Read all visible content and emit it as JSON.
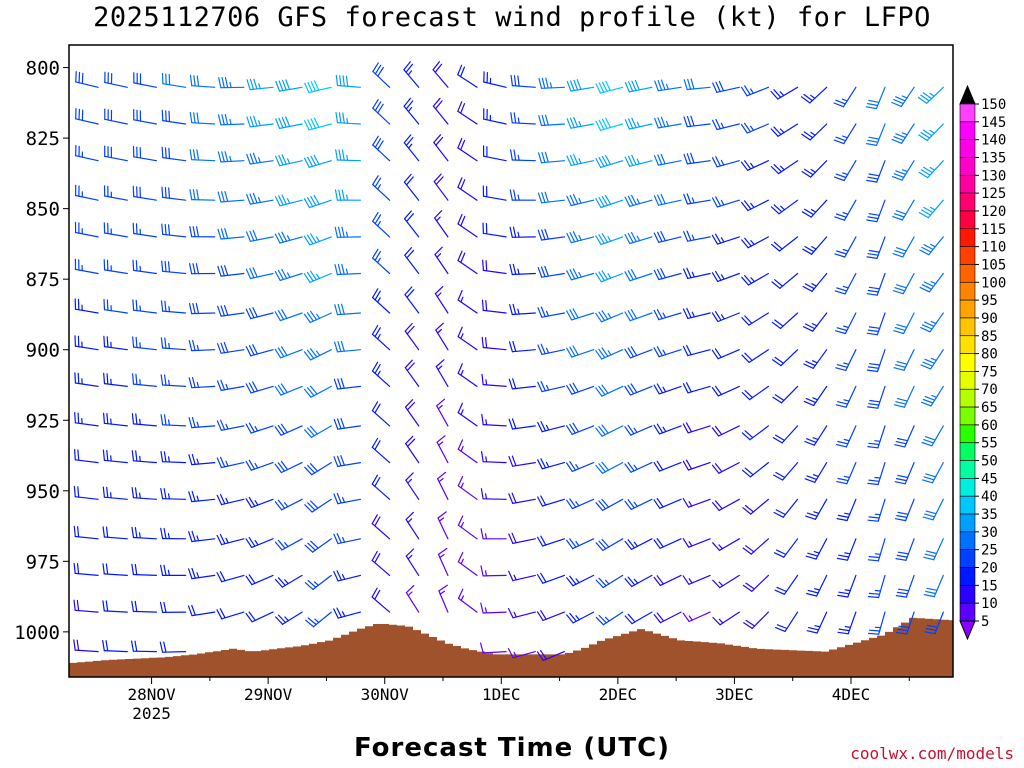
{
  "chart_data": {
    "type": "wind_barb_time_height",
    "title": "2025112706 GFS forecast wind profile (kt) for LFPO",
    "xlabel": "Forecast Time (UTC)",
    "ylabel": "",
    "credit": "coolwx.com/models",
    "model_run": "2025112706",
    "model": "GFS",
    "station": "LFPO",
    "units": "kt",
    "x_range_hours_from_28NOV00Z": [
      -17,
      165
    ],
    "x_step_hours": 6,
    "x_ticks": [
      {
        "label": "28NOV",
        "sublabel": "2025",
        "hour": 0
      },
      {
        "label": "29NOV",
        "sublabel": "",
        "hour": 24
      },
      {
        "label": "30NOV",
        "sublabel": "",
        "hour": 48
      },
      {
        "label": "1DEC",
        "sublabel": "",
        "hour": 72
      },
      {
        "label": "2DEC",
        "sublabel": "",
        "hour": 96
      },
      {
        "label": "3DEC",
        "sublabel": "",
        "hour": 120
      },
      {
        "label": "4DEC",
        "sublabel": "",
        "hour": 144
      }
    ],
    "y_range_hPa": [
      792,
      1016
    ],
    "y_ticks": [
      800,
      825,
      850,
      875,
      900,
      925,
      950,
      975,
      1000
    ],
    "pressure_levels_hPa": [
      807,
      820,
      833,
      847,
      860,
      873,
      887,
      900,
      913,
      927,
      940,
      953,
      967,
      980,
      993,
      1007
    ],
    "colorbar_values": [
      5,
      10,
      15,
      20,
      25,
      30,
      35,
      40,
      45,
      50,
      55,
      60,
      65,
      70,
      75,
      80,
      85,
      90,
      95,
      100,
      105,
      110,
      115,
      120,
      125,
      130,
      135,
      140,
      145,
      150
    ],
    "colorbar_colors": [
      "#8a00ff",
      "#5a00ff",
      "#2a00ff",
      "#0018ff",
      "#0040ff",
      "#0070ff",
      "#00a0ff",
      "#00c8ff",
      "#00eedd",
      "#00ffa0",
      "#00ff60",
      "#28ff00",
      "#7aff00",
      "#b4ff00",
      "#e6ff00",
      "#ffff00",
      "#ffe000",
      "#ffc400",
      "#ffa400",
      "#ff8400",
      "#ff6400",
      "#ff4000",
      "#ff1800",
      "#ff0040",
      "#ff0070",
      "#ff00a0",
      "#ff00c8",
      "#ff00e6",
      "#ff00ff",
      "#ff40ff"
    ],
    "surface_terrain_color": "#a0522d",
    "surface_pressure_hPa": [
      {
        "hour": -17,
        "p": 1011
      },
      {
        "hour": -10,
        "p": 1010
      },
      {
        "hour": 2,
        "p": 1009
      },
      {
        "hour": 8,
        "p": 1008
      },
      {
        "hour": 16,
        "p": 1006
      },
      {
        "hour": 20,
        "p": 1007
      },
      {
        "hour": 30,
        "p": 1005
      },
      {
        "hour": 36,
        "p": 1003
      },
      {
        "hour": 42,
        "p": 999
      },
      {
        "hour": 46,
        "p": 997
      },
      {
        "hour": 52,
        "p": 998
      },
      {
        "hour": 56,
        "p": 1001
      },
      {
        "hour": 60,
        "p": 1004
      },
      {
        "hour": 64,
        "p": 1006
      },
      {
        "hour": 70,
        "p": 1008
      },
      {
        "hour": 84,
        "p": 1008
      },
      {
        "hour": 88,
        "p": 1006
      },
      {
        "hour": 92,
        "p": 1003
      },
      {
        "hour": 96,
        "p": 1001
      },
      {
        "hour": 100,
        "p": 999
      },
      {
        "hour": 104,
        "p": 1001
      },
      {
        "hour": 108,
        "p": 1003
      },
      {
        "hour": 116,
        "p": 1004
      },
      {
        "hour": 124,
        "p": 1006
      },
      {
        "hour": 138,
        "p": 1007
      },
      {
        "hour": 144,
        "p": 1004
      },
      {
        "hour": 150,
        "p": 1001
      },
      {
        "hour": 156,
        "p": 995
      },
      {
        "hour": 165,
        "p": 996
      }
    ],
    "wind_keyframes": [
      {
        "hour": -17,
        "upper": {
          "dir": 285,
          "spd": 28
        },
        "lower": {
          "dir": 275,
          "spd": 18
        }
      },
      {
        "hour": 6,
        "upper": {
          "dir": 280,
          "spd": 30
        },
        "lower": {
          "dir": 270,
          "spd": 22
        }
      },
      {
        "hour": 24,
        "upper": {
          "dir": 265,
          "spd": 36
        },
        "lower": {
          "dir": 245,
          "spd": 20
        }
      },
      {
        "hour": 40,
        "upper": {
          "dir": 255,
          "spd": 43
        },
        "lower": {
          "dir": 225,
          "spd": 25
        }
      },
      {
        "hour": 50,
        "upper": {
          "dir": 320,
          "spd": 28
        },
        "lower": {
          "dir": 320,
          "spd": 16
        }
      },
      {
        "hour": 62,
        "upper": {
          "dir": 320,
          "spd": 18
        },
        "lower": {
          "dir": 340,
          "spd": 12
        }
      },
      {
        "hour": 74,
        "upper": {
          "dir": 280,
          "spd": 24
        },
        "lower": {
          "dir": 260,
          "spd": 12
        }
      },
      {
        "hour": 96,
        "upper": {
          "dir": 255,
          "spd": 42
        },
        "lower": {
          "dir": 235,
          "spd": 25
        }
      },
      {
        "hour": 116,
        "upper": {
          "dir": 265,
          "spd": 30
        },
        "lower": {
          "dir": 245,
          "spd": 12
        }
      },
      {
        "hour": 136,
        "upper": {
          "dir": 235,
          "spd": 22
        },
        "lower": {
          "dir": 205,
          "spd": 22
        }
      },
      {
        "hour": 150,
        "upper": {
          "dir": 200,
          "spd": 30
        },
        "lower": {
          "dir": 195,
          "spd": 25
        }
      },
      {
        "hour": 165,
        "upper": {
          "dir": 230,
          "spd": 38
        },
        "lower": {
          "dir": 200,
          "spd": 30
        }
      }
    ]
  }
}
